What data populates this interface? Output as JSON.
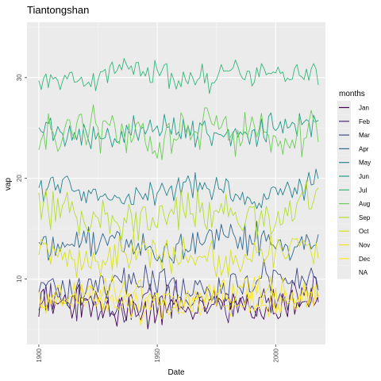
{
  "chart_data": {
    "type": "line",
    "title": "Tiantongshan",
    "xlabel": "Date",
    "ylabel": "vap",
    "xlim": [
      1896,
      2022
    ],
    "ylim": [
      3.5,
      35.5
    ],
    "x_ticks": [
      "1900",
      "1950",
      "2000"
    ],
    "x_tick_values": [
      1901,
      1951,
      2001
    ],
    "y_ticks": [
      "10",
      "20",
      "30"
    ],
    "y_tick_values": [
      10,
      20,
      30
    ],
    "grid": true,
    "legend_placement": "right",
    "legend_title": "months",
    "x_start": 1901,
    "x_end": 2019,
    "series": [
      {
        "label": "Jan",
        "color": "#440154",
        "mean": 7.2,
        "amp": 0.9,
        "wave": 0.4
      },
      {
        "label": "Feb",
        "color": "#482878",
        "mean": 7.7,
        "amp": 1.0,
        "wave": 0.4
      },
      {
        "label": "Mar",
        "color": "#3E4A89",
        "mean": 9.5,
        "amp": 0.9,
        "wave": 0.5
      },
      {
        "label": "Apr",
        "color": "#31688E",
        "mean": 13.6,
        "amp": 0.9,
        "wave": 0.6
      },
      {
        "label": "May",
        "color": "#26828E",
        "mean": 18.6,
        "amp": 0.8,
        "wave": 0.6
      },
      {
        "label": "Jun",
        "color": "#1F9E89",
        "mean": 24.6,
        "amp": 0.8,
        "wave": 0.5
      },
      {
        "label": "Jul",
        "color": "#35B779",
        "mean": 30.2,
        "amp": 0.8,
        "wave": 0.6
      },
      {
        "label": "Aug",
        "color": "#6DCD59",
        "mean": 24.3,
        "amp": 1.3,
        "wave": 0.7
      },
      {
        "label": "Sep",
        "color": "#B4DE2C",
        "mean": 16.3,
        "amp": 1.2,
        "wave": 0.8
      },
      {
        "label": "Oct",
        "color": "#D7E219",
        "mean": 12.3,
        "amp": 1.0,
        "wave": 0.6
      },
      {
        "label": "Nov",
        "color": "#F1E51D",
        "mean": 8.4,
        "amp": 0.9,
        "wave": 0.5
      },
      {
        "label": "Dec",
        "color": "#FDE725",
        "mean": 7.6,
        "amp": 0.9,
        "wave": 0.4
      }
    ],
    "na_label": "NA",
    "na_color": "#DCDCDC"
  },
  "colors": {
    "panel_bg": "#EBEBEB",
    "grid_major": "#FFFFFF",
    "grid_minor": "#F4F4F4"
  }
}
